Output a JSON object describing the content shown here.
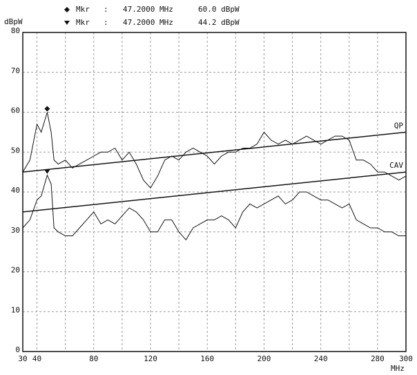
{
  "chart_data": {
    "type": "line",
    "y_label": "dBpW",
    "x_label": "MHz",
    "xlim": [
      30,
      300
    ],
    "ylim": [
      0,
      80
    ],
    "xticks": [
      30,
      40,
      80,
      120,
      160,
      200,
      240,
      280,
      300
    ],
    "yticks": [
      0,
      10,
      20,
      30,
      40,
      50,
      60,
      70,
      80
    ],
    "xgrid": [
      40,
      60,
      80,
      100,
      120,
      140,
      160,
      180,
      200,
      220,
      240,
      260,
      280
    ],
    "grid": true,
    "color": "#111111",
    "x": [
      30,
      35,
      40,
      43,
      47.2,
      50,
      52,
      55,
      60,
      65,
      70,
      75,
      80,
      85,
      90,
      95,
      100,
      105,
      110,
      115,
      120,
      125,
      130,
      135,
      140,
      145,
      150,
      155,
      160,
      165,
      170,
      175,
      180,
      185,
      190,
      195,
      200,
      205,
      210,
      215,
      220,
      225,
      230,
      235,
      240,
      245,
      250,
      255,
      260,
      265,
      270,
      275,
      280,
      285,
      290,
      295,
      300
    ],
    "series": [
      {
        "color": "#111111",
        "values": [
          45,
          48,
          57,
          55,
          60,
          55,
          48,
          47,
          48,
          46,
          47,
          48,
          49,
          50,
          50,
          51,
          48,
          50,
          47,
          43,
          41,
          44,
          48,
          49,
          48,
          50,
          51,
          50,
          49,
          47,
          49,
          50,
          50,
          51,
          51,
          52,
          55,
          53,
          52,
          53,
          52,
          53,
          54,
          53,
          52,
          53,
          54,
          54,
          53,
          48,
          48,
          47,
          45,
          45,
          44,
          43,
          44
        ]
      },
      {
        "color": "#111111",
        "values": [
          31,
          33,
          38,
          39,
          44.2,
          42,
          31,
          30,
          29,
          29,
          31,
          33,
          35,
          32,
          33,
          32,
          34,
          36,
          35,
          33,
          30,
          30,
          33,
          33,
          30,
          28,
          31,
          32,
          33,
          33,
          34,
          33,
          31,
          35,
          37,
          36,
          37,
          38,
          39,
          37,
          38,
          40,
          40,
          39,
          38,
          38,
          37,
          36,
          37,
          33,
          32,
          31,
          31,
          30,
          30,
          29,
          29
        ]
      }
    ],
    "limit_lines": [
      {
        "name": "QP",
        "x": [
          30,
          300
        ],
        "values": [
          45,
          55
        ]
      },
      {
        "name": "CAV",
        "x": [
          30,
          300
        ],
        "values": [
          35,
          45
        ]
      }
    ],
    "markers": [
      {
        "symbol": "diamond",
        "label": "Mkr",
        "sep": ":",
        "x": 47.2,
        "x_label": "47.2000 MHz",
        "y": 60,
        "y_label": "60.0 dBpW"
      },
      {
        "symbol": "triangle",
        "label": "Mkr",
        "sep": ":",
        "x": 47.2,
        "x_label": "47.2000 MHz",
        "y": 44.2,
        "y_label": "44.2 dBpW"
      }
    ]
  }
}
